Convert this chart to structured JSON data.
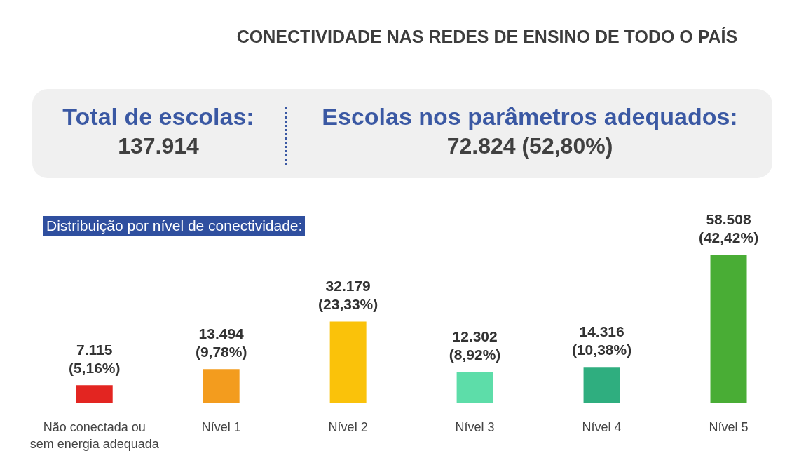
{
  "chart_data": {
    "type": "bar",
    "title": "CONECTIVIDADE NAS REDES DE ENSINO DE TODO O PAÍS",
    "subtitle": "Distribuição por nível de conectividade:",
    "annotations": [
      "Total de escolas:",
      "137.914",
      "Escolas nos parâmetros adequados:",
      "72.824 (52,80%)"
    ],
    "categories": [
      "Não conectada ou\nsem energia adequada",
      "Nível 1",
      "Nível 2",
      "Nível 3",
      "Nível 4",
      "Nível 5"
    ],
    "values": [
      7115,
      13494,
      32179,
      12302,
      14316,
      58508
    ],
    "colors": [
      "#e32521",
      "#f39c1e",
      "#fac20a",
      "#5ddda9",
      "#2fae7f",
      "#49ad35"
    ],
    "value_labels": [
      "7.115\n(5,16%)",
      "13.494\n(9,78%)",
      "32.179\n(23,33%)",
      "12.302\n(8,92%)",
      "14.316\n(10,38%)",
      "58.508\n(42,42%)"
    ],
    "data_labels": false
  }
}
